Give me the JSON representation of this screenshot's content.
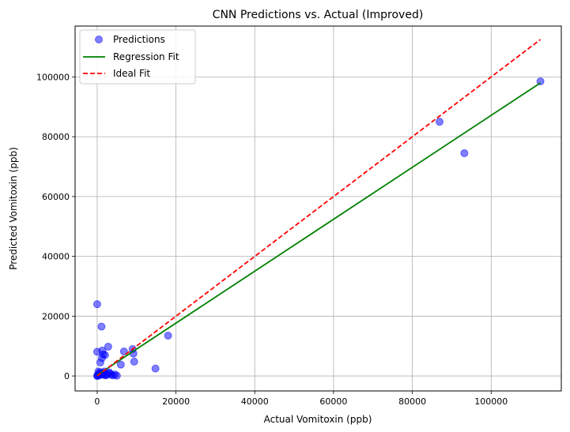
{
  "chart_data": {
    "type": "scatter",
    "title": "CNN Predictions vs. Actual (Improved)",
    "xlabel": "Actual Vomitoxin (ppb)",
    "ylabel": "Predicted Vomitoxin (ppb)",
    "xlim": [
      -5600,
      117800
    ],
    "ylim": [
      -5000,
      117000
    ],
    "xticks": [
      0,
      20000,
      40000,
      60000,
      80000,
      100000
    ],
    "yticks": [
      0,
      20000,
      40000,
      60000,
      80000,
      100000
    ],
    "grid": true,
    "legend_position": "top-left",
    "legend": [
      "Predictions",
      "Regression Fit",
      "Ideal Fit"
    ],
    "colors": {
      "points": "#0000ff",
      "regression": "#008000",
      "ideal": "#ff0000"
    },
    "series": [
      {
        "name": "Predictions",
        "type": "scatter",
        "points": [
          [
            112500,
            98500
          ],
          [
            86900,
            85000
          ],
          [
            93200,
            74500
          ],
          [
            0,
            24000
          ],
          [
            1100,
            16500
          ],
          [
            18000,
            13500
          ],
          [
            14800,
            2500
          ],
          [
            2800,
            9800
          ],
          [
            9000,
            9000
          ],
          [
            6800,
            8200
          ],
          [
            0,
            8100
          ],
          [
            9200,
            7500
          ],
          [
            1500,
            7200
          ],
          [
            1200,
            6000
          ],
          [
            9400,
            4800
          ],
          [
            800,
            4500
          ],
          [
            6000,
            3800
          ],
          [
            1300,
            8500
          ],
          [
            2000,
            7000
          ],
          [
            300,
            1500
          ],
          [
            500,
            800
          ],
          [
            1000,
            500
          ],
          [
            1500,
            1000
          ],
          [
            2000,
            300
          ],
          [
            2500,
            600
          ],
          [
            3000,
            1200
          ],
          [
            3500,
            400
          ],
          [
            4000,
            200
          ],
          [
            4500,
            500
          ],
          [
            5000,
            100
          ],
          [
            100,
            200
          ],
          [
            200,
            100
          ],
          [
            600,
            300
          ],
          [
            1800,
            1500
          ],
          [
            2200,
            200
          ],
          [
            700,
            1200
          ],
          [
            0,
            0
          ],
          [
            1600,
            400
          ],
          [
            3200,
            900
          ]
        ]
      },
      {
        "name": "Regression Fit",
        "type": "line",
        "points": [
          [
            0,
            300
          ],
          [
            112500,
            98000
          ]
        ]
      },
      {
        "name": "Ideal Fit",
        "type": "line",
        "points": [
          [
            0,
            0
          ],
          [
            112500,
            112500
          ]
        ]
      }
    ]
  }
}
